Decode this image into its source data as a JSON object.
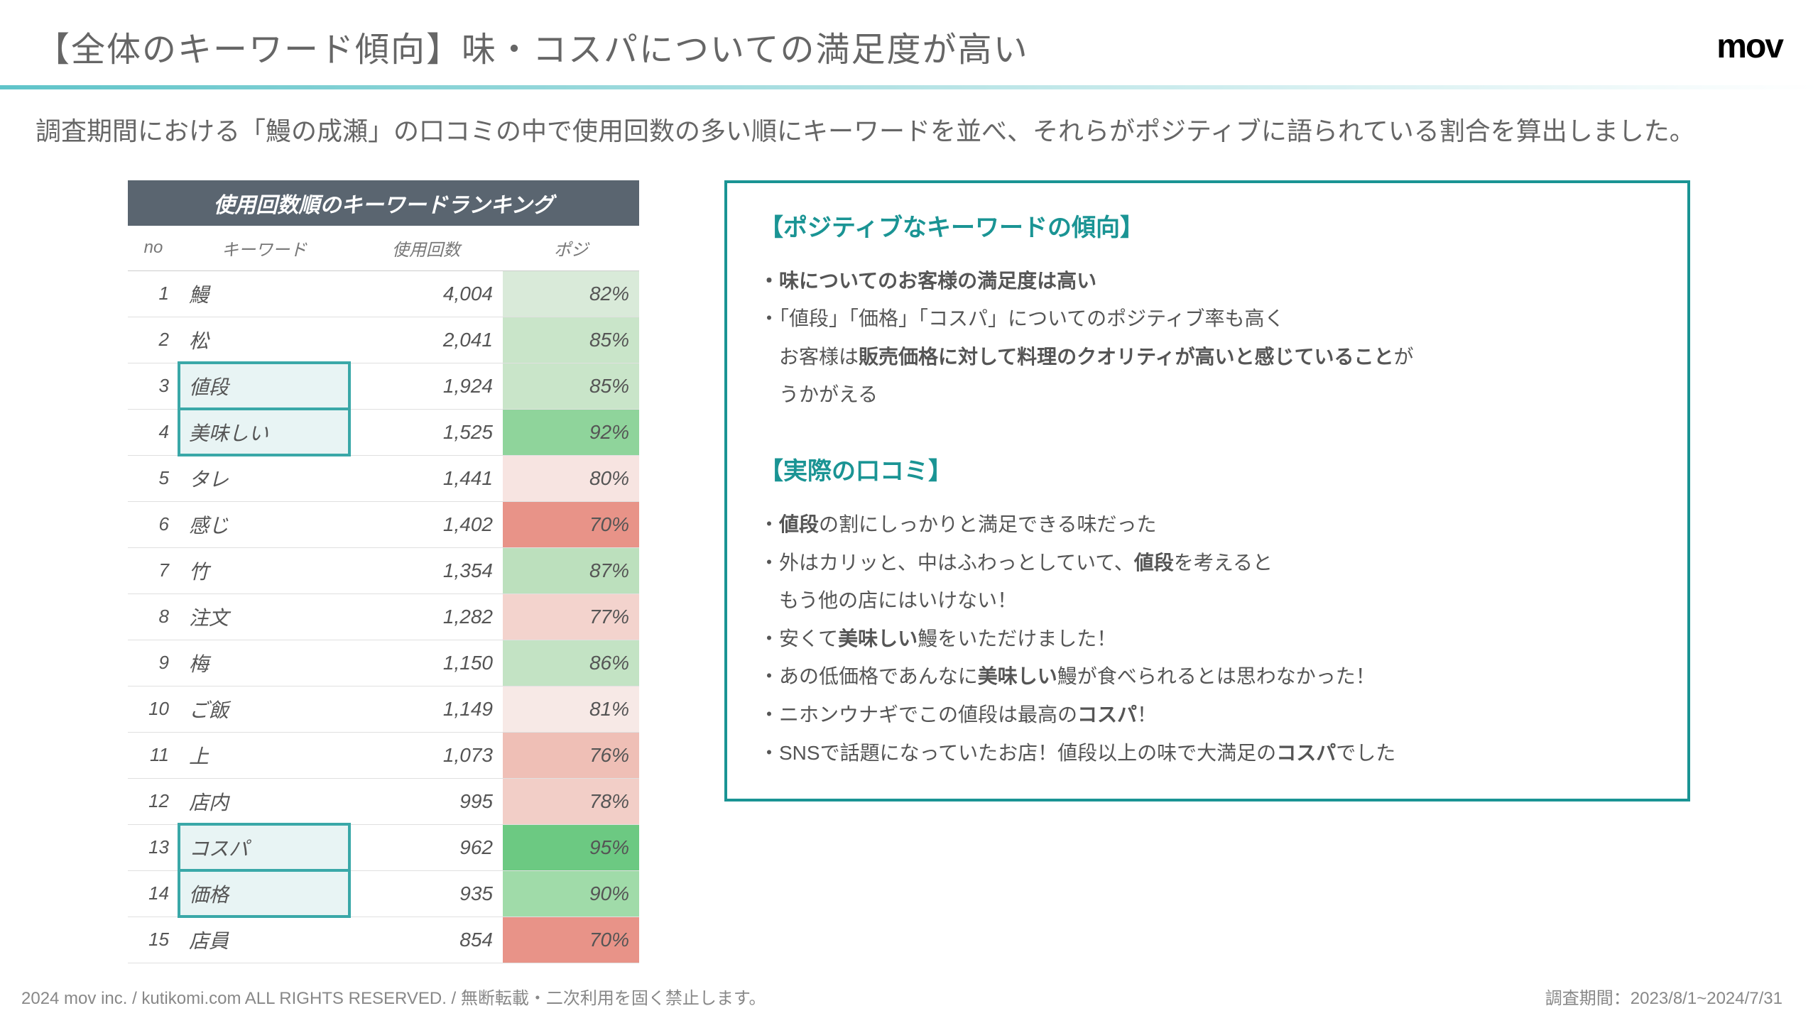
{
  "page_title": "【全体のキーワード傾向】味・コスパについての満足度が高い",
  "brand": "mov",
  "subtitle": "調査期間における「鰻の成瀬」の口コミの中で使用回数の多い順にキーワードを並べ、それらがポジティブに語られている割合を算出しました。",
  "table": {
    "title": "使用回数順のキーワードランキング",
    "columns": [
      "no",
      "キーワード",
      "使用回数",
      "ポジ"
    ],
    "rows": [
      {
        "no": "1",
        "kw": "鰻",
        "count": "4,004",
        "pct": "82%",
        "pct_bg": "#d9ead9",
        "boxed": false
      },
      {
        "no": "2",
        "kw": "松",
        "count": "2,041",
        "pct": "85%",
        "pct_bg": "#c9e5c9",
        "boxed": false
      },
      {
        "no": "3",
        "kw": "値段",
        "count": "1,924",
        "pct": "85%",
        "pct_bg": "#c9e5c9",
        "boxed": true
      },
      {
        "no": "4",
        "kw": "美味しい",
        "count": "1,525",
        "pct": "92%",
        "pct_bg": "#8fd49b",
        "boxed": true
      },
      {
        "no": "5",
        "kw": "タレ",
        "count": "1,441",
        "pct": "80%",
        "pct_bg": "#f7e4e1",
        "boxed": false
      },
      {
        "no": "6",
        "kw": "感じ",
        "count": "1,402",
        "pct": "70%",
        "pct_bg": "#e89388",
        "boxed": false
      },
      {
        "no": "7",
        "kw": "竹",
        "count": "1,354",
        "pct": "87%",
        "pct_bg": "#bce0bd",
        "boxed": false
      },
      {
        "no": "8",
        "kw": "注文",
        "count": "1,282",
        "pct": "77%",
        "pct_bg": "#f3d3cd",
        "boxed": false
      },
      {
        "no": "9",
        "kw": "梅",
        "count": "1,150",
        "pct": "86%",
        "pct_bg": "#c3e3c4",
        "boxed": false
      },
      {
        "no": "10",
        "kw": "ご飯",
        "count": "1,149",
        "pct": "81%",
        "pct_bg": "#f7e9e6",
        "boxed": false
      },
      {
        "no": "11",
        "kw": "上",
        "count": "1,073",
        "pct": "76%",
        "pct_bg": "#efbfb6",
        "boxed": false
      },
      {
        "no": "12",
        "kw": "店内",
        "count": "995",
        "pct": "78%",
        "pct_bg": "#f2cec7",
        "boxed": false
      },
      {
        "no": "13",
        "kw": "コスパ",
        "count": "962",
        "pct": "95%",
        "pct_bg": "#6cc982",
        "boxed": true
      },
      {
        "no": "14",
        "kw": "価格",
        "count": "935",
        "pct": "90%",
        "pct_bg": "#a0dba9",
        "boxed": true
      },
      {
        "no": "15",
        "kw": "店員",
        "count": "854",
        "pct": "70%",
        "pct_bg": "#e89388",
        "boxed": false
      }
    ]
  },
  "right": {
    "heading1": "【ポジティブなキーワードの傾向】",
    "lines1": [
      {
        "t": "・味についてのお客様の満足度は高い",
        "bold": true
      },
      {
        "t": "・「値段」「価格」「コスパ」についてのポジティブ率も高く",
        "bold": false
      },
      {
        "t": "　お客様は<strong>販売価格に対して料理のクオリティが高いと感じていること</strong>が",
        "bold": false
      },
      {
        "t": "　うかがえる",
        "bold": false
      }
    ],
    "heading2": "【実際の口コミ】",
    "lines2": [
      {
        "t": "・<strong>値段</strong>の割にしっかりと満足できる味だった"
      },
      {
        "t": "・外はカリッと、中はふわっとしていて、<strong>値段</strong>を考えると"
      },
      {
        "t": "　もう他の店にはいけない！"
      },
      {
        "t": "・安くて<strong>美味しい</strong>鰻をいただけました！"
      },
      {
        "t": "・あの低価格であんなに<strong>美味しい</strong>鰻が食べられるとは思わなかった！"
      },
      {
        "t": "・ニホンウナギでこの値段は最高の<strong>コスパ</strong>！"
      },
      {
        "t": "・SNSで話題になっていたお店！値段以上の味で大満足の<strong>コスパ</strong>でした"
      }
    ]
  },
  "footer_left": "2024 mov inc. / kutikomi.com ALL RIGHTS RESERVED. / 無断転載・二次利用を固く禁止します。",
  "footer_right": "調査期間：2023/8/1~2024/7/31",
  "colors": {
    "accent": "#1a9494",
    "header_box": "#5a6570",
    "divider_from": "#5fc4c9"
  }
}
